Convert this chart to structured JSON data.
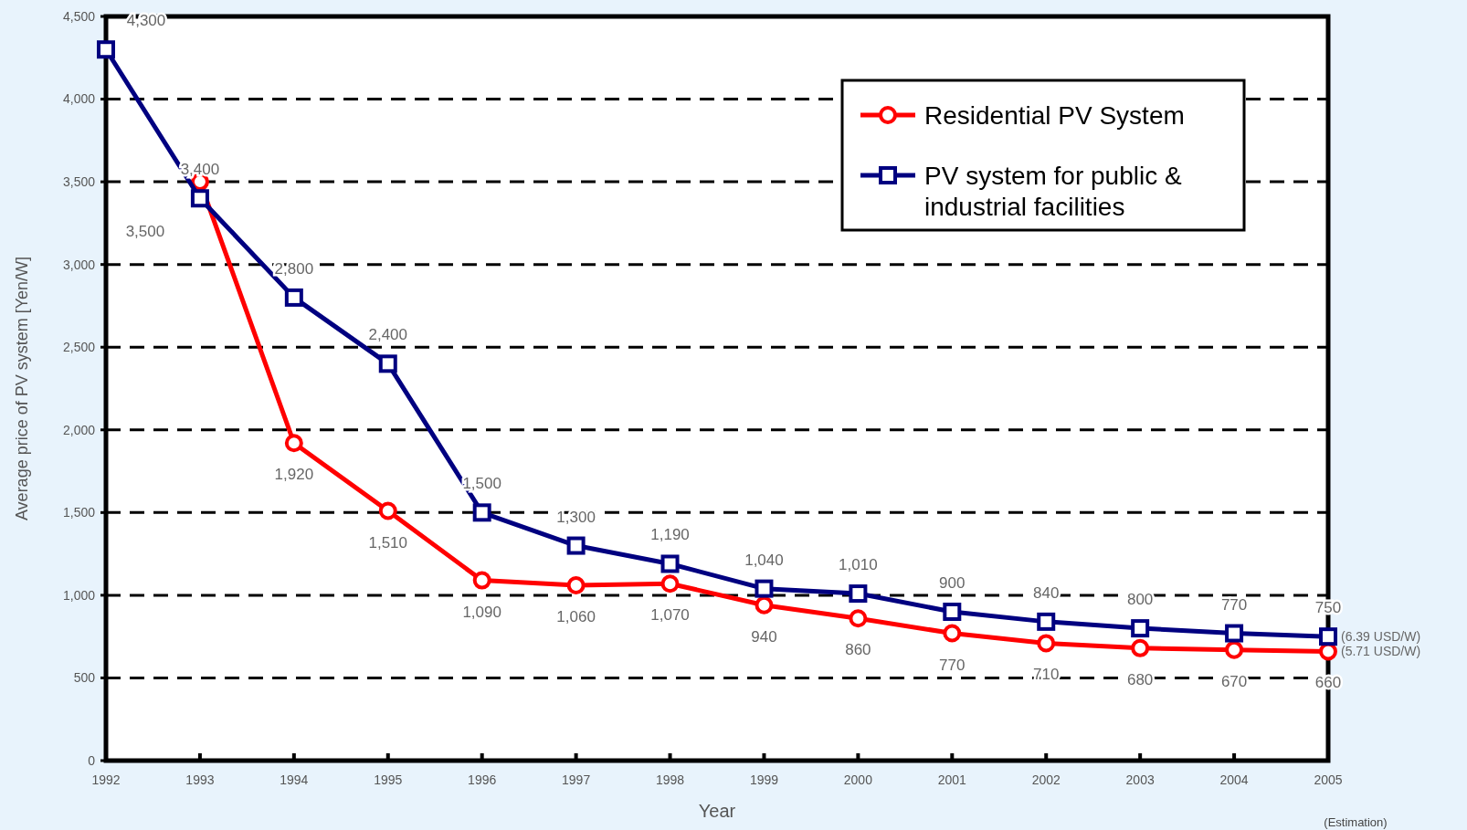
{
  "chart_data": {
    "type": "line",
    "xlabel": "Year",
    "ylabel": "Average price of PV system [Yen/W]",
    "x": [
      1992,
      1993,
      1994,
      1995,
      1996,
      1997,
      1998,
      1999,
      2000,
      2001,
      2002,
      2003,
      2004,
      2005
    ],
    "xlim": [
      1992,
      2005
    ],
    "xticks": [
      1992,
      1993,
      1994,
      1995,
      1996,
      1997,
      1998,
      1999,
      2000,
      2001,
      2002,
      2003,
      2004,
      2005
    ],
    "ylim": [
      0,
      4500
    ],
    "yticks": [
      0,
      500,
      {
        "value": 1000,
        "label": "1,000"
      },
      {
        "value": 1500,
        "label": "1,500"
      },
      {
        "value": 2000,
        "label": "2,000"
      },
      {
        "value": 2500,
        "label": "2,500"
      },
      {
        "value": 3000,
        "label": "3,000"
      },
      {
        "value": 3500,
        "label": "3,500"
      },
      {
        "value": 4000,
        "label": "4,000"
      },
      {
        "value": 4500,
        "label": "4,500"
      }
    ],
    "grid": "y",
    "legend": "top right",
    "line_style": "solid",
    "series": [
      {
        "name": "Residential PV System",
        "color": "#ff0000",
        "marker": "circle",
        "values": [
          null,
          3500,
          1920,
          1510,
          1090,
          1060,
          1070,
          940,
          860,
          770,
          710,
          680,
          670,
          660
        ],
        "value_labels": [
          null,
          "3,500",
          "1,920",
          "1,510",
          "1,090",
          "1,060",
          "1,070",
          "940",
          "860",
          "770",
          "710",
          "680",
          "670",
          "660"
        ]
      },
      {
        "name": "PV system for public & industrial facilities",
        "color": "#000080",
        "marker": "square",
        "values": [
          4300,
          3400,
          2800,
          2400,
          1500,
          1300,
          1190,
          1040,
          1010,
          900,
          840,
          800,
          770,
          750
        ],
        "value_labels": [
          "4,300",
          "3,400",
          "2,800",
          "2,400",
          "1,500",
          "1,300",
          "1,190",
          "1,040",
          "1,010",
          "900",
          "840",
          "800",
          "770",
          "750"
        ]
      }
    ],
    "annotations": [
      {
        "text": "(6.39 USD/W)",
        "x": 2005,
        "y": 750
      },
      {
        "text": "(5.71 USD/W)",
        "x": 2005,
        "y": 660
      },
      "(Estimation)"
    ]
  }
}
